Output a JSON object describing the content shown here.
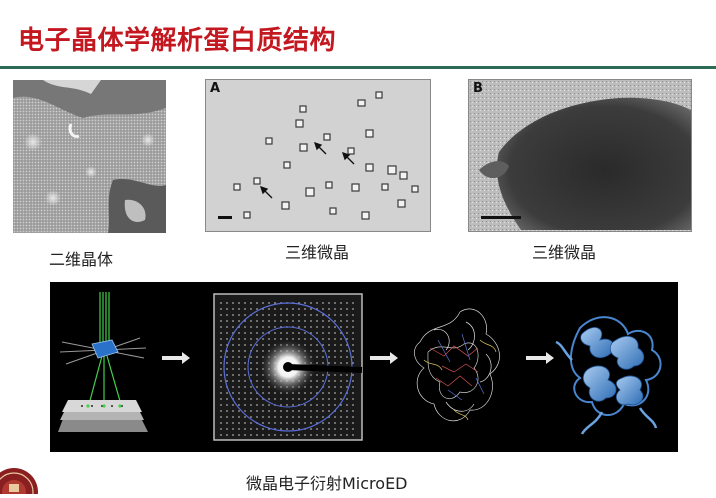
{
  "slide": {
    "title": "电子晶体学解析蛋白质结构"
  },
  "panels": {
    "top": [
      {
        "caption": "二维晶体",
        "letter": ""
      },
      {
        "caption": "三维微晶",
        "letter": "A"
      },
      {
        "caption": "三维微晶",
        "letter": "B"
      }
    ]
  },
  "microed": {
    "caption": "微晶电子衍射MicroED"
  },
  "colors": {
    "title": "#c41820",
    "rule": "#2d6b57"
  }
}
